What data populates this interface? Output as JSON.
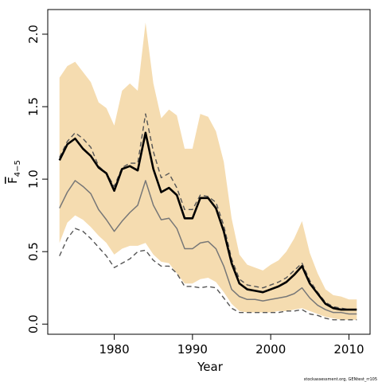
{
  "chart_data": {
    "type": "line",
    "title": "",
    "xlabel": "Year",
    "ylabel": "F",
    "ylabel_subscript": "4−5",
    "xlim": [
      1971.5,
      2012.7
    ],
    "ylim": [
      -0.07,
      2.17
    ],
    "xticks": [
      1980,
      1990,
      2000,
      2010
    ],
    "xtick_labels": [
      "1980",
      "1990",
      "2000",
      "2010"
    ],
    "yticks": [
      0.0,
      0.5,
      1.0,
      1.5,
      2.0
    ],
    "ytick_labels": [
      "0.0",
      "0.5",
      "1.0",
      "1.5",
      "2.0"
    ],
    "grid": false,
    "legend": "none",
    "x": [
      1973,
      1974,
      1975,
      1976,
      1977,
      1978,
      1979,
      1980,
      1981,
      1982,
      1983,
      1984,
      1985,
      1986,
      1987,
      1988,
      1989,
      1990,
      1991,
      1992,
      1993,
      1994,
      1995,
      1996,
      1997,
      1998,
      1999,
      2000,
      2001,
      2002,
      2003,
      2004,
      2005,
      2006,
      2007,
      2008,
      2009,
      2010,
      2011
    ],
    "band": {
      "upper": [
        1.7,
        1.78,
        1.81,
        1.74,
        1.67,
        1.53,
        1.49,
        1.37,
        1.61,
        1.66,
        1.61,
        2.08,
        1.66,
        1.42,
        1.48,
        1.44,
        1.21,
        1.21,
        1.45,
        1.43,
        1.33,
        1.12,
        0.73,
        0.48,
        0.41,
        0.39,
        0.37,
        0.41,
        0.44,
        0.5,
        0.59,
        0.71,
        0.49,
        0.35,
        0.24,
        0.2,
        0.19,
        0.17,
        0.17
      ],
      "lower": [
        0.56,
        0.7,
        0.75,
        0.72,
        0.67,
        0.61,
        0.56,
        0.48,
        0.52,
        0.54,
        0.54,
        0.56,
        0.48,
        0.43,
        0.42,
        0.35,
        0.28,
        0.28,
        0.31,
        0.32,
        0.29,
        0.22,
        0.14,
        0.09,
        0.08,
        0.08,
        0.08,
        0.08,
        0.09,
        0.09,
        0.1,
        0.11,
        0.09,
        0.07,
        0.05,
        0.04,
        0.03,
        0.03,
        0.03
      ],
      "color": "#f5dcb0"
    },
    "series": [
      {
        "style": "solid-thick",
        "color": "#000000",
        "values": [
          1.13,
          1.24,
          1.28,
          1.21,
          1.16,
          1.08,
          1.04,
          0.92,
          1.07,
          1.09,
          1.06,
          1.32,
          1.07,
          0.91,
          0.94,
          0.89,
          0.73,
          0.73,
          0.87,
          0.87,
          0.8,
          0.64,
          0.42,
          0.28,
          0.24,
          0.23,
          0.22,
          0.24,
          0.26,
          0.29,
          0.34,
          0.4,
          0.28,
          0.21,
          0.14,
          0.11,
          0.1,
          0.1,
          0.1
        ]
      },
      {
        "style": "solid-thin",
        "color": "#777777",
        "values": [
          0.8,
          0.91,
          0.99,
          0.95,
          0.9,
          0.79,
          0.72,
          0.64,
          0.71,
          0.77,
          0.82,
          0.99,
          0.82,
          0.72,
          0.73,
          0.66,
          0.52,
          0.52,
          0.56,
          0.57,
          0.52,
          0.4,
          0.24,
          0.19,
          0.17,
          0.17,
          0.16,
          0.17,
          0.18,
          0.19,
          0.21,
          0.25,
          0.18,
          0.13,
          0.1,
          0.08,
          0.08,
          0.07,
          0.07
        ]
      },
      {
        "style": "dashed",
        "color": "#555555",
        "values": [
          0.47,
          0.59,
          0.66,
          0.64,
          0.59,
          0.53,
          0.47,
          0.39,
          0.42,
          0.45,
          0.5,
          0.51,
          0.44,
          0.4,
          0.4,
          0.35,
          0.26,
          0.26,
          0.25,
          0.26,
          0.25,
          0.18,
          0.11,
          0.08,
          0.08,
          0.08,
          0.08,
          0.08,
          0.08,
          0.09,
          0.09,
          0.1,
          0.07,
          0.06,
          0.04,
          0.03,
          0.03,
          0.03,
          0.03
        ]
      },
      {
        "style": "dashed",
        "color": "#555555",
        "values": [
          1.15,
          1.26,
          1.32,
          1.28,
          1.22,
          1.09,
          1.04,
          0.95,
          1.08,
          1.11,
          1.11,
          1.45,
          1.19,
          1.01,
          1.04,
          0.94,
          0.79,
          0.79,
          0.89,
          0.88,
          0.84,
          0.68,
          0.45,
          0.31,
          0.27,
          0.26,
          0.25,
          0.27,
          0.29,
          0.32,
          0.37,
          0.42,
          0.3,
          0.22,
          0.15,
          0.12,
          0.11,
          0.1,
          0.1
        ]
      }
    ],
    "credit": "stockassessment.org, GENtest_rr105"
  }
}
